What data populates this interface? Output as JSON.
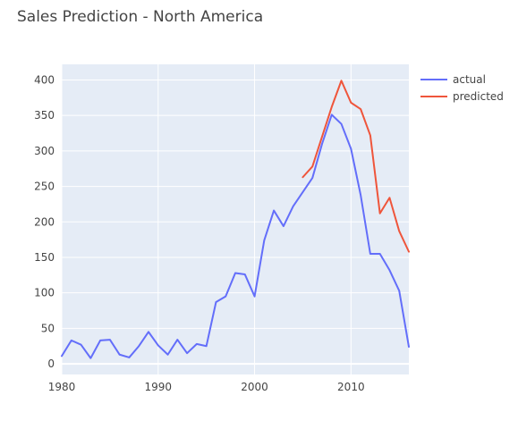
{
  "chart_data": {
    "type": "line",
    "title": "Sales Prediction - North America",
    "xlabel": "",
    "ylabel": "",
    "xlim": [
      1980,
      2016
    ],
    "ylim": [
      -15,
      422
    ],
    "x_ticks": [
      1980,
      1990,
      2000,
      2010
    ],
    "y_ticks": [
      0,
      50,
      100,
      150,
      200,
      250,
      300,
      350,
      400
    ],
    "grid": true,
    "legend_position": "top-right",
    "series": [
      {
        "name": "actual",
        "color": "#636efa",
        "x": [
          1980,
          1981,
          1982,
          1983,
          1984,
          1985,
          1986,
          1987,
          1988,
          1989,
          1990,
          1991,
          1992,
          1993,
          1994,
          1995,
          1996,
          1997,
          1998,
          1999,
          2000,
          2001,
          2002,
          2003,
          2004,
          2005,
          2006,
          2007,
          2008,
          2009,
          2010,
          2011,
          2012,
          2013,
          2014,
          2015,
          2016
        ],
        "y": [
          11,
          33,
          27,
          8,
          33,
          34,
          13,
          9,
          25,
          45,
          26,
          13,
          34,
          15,
          28,
          25,
          87,
          95,
          128,
          126,
          95,
          174,
          216,
          194,
          222,
          242,
          262,
          310,
          351,
          338,
          303,
          238,
          155,
          155,
          132,
          103,
          24
        ]
      },
      {
        "name": "predicted",
        "color": "#ef553b",
        "x": [
          2005,
          2006,
          2007,
          2008,
          2009,
          2010,
          2011,
          2012,
          2013,
          2014,
          2015,
          2016
        ],
        "y": [
          263,
          278,
          320,
          362,
          399,
          368,
          359,
          322,
          212,
          234,
          187,
          158
        ]
      }
    ]
  }
}
